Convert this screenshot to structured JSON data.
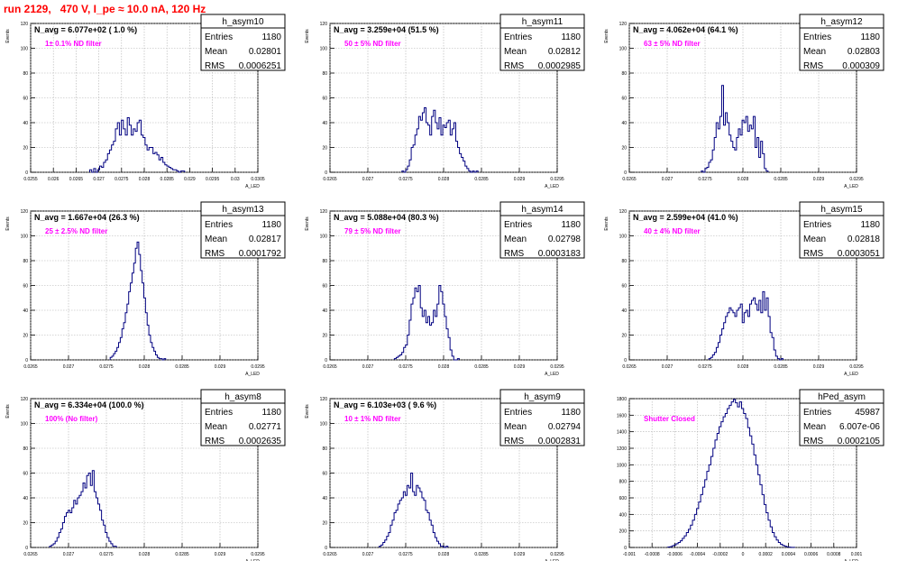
{
  "run_title": "run 2129,   470 V, I_pe ≈ 10.0 nA, 120 Hz",
  "colors": {
    "hist": "#000080",
    "title": "#ff0000",
    "filter": "#ff00ff",
    "grid": "#b0b0b0"
  },
  "chart_data": [
    {
      "type": "histogram",
      "name": "h_asym10",
      "ylabel": "Events",
      "xlabel": "A_LED",
      "xlim": [
        0.0255,
        0.0305
      ],
      "ylim": [
        0,
        120
      ],
      "xticks": [
        "0.0255",
        "0.026",
        "0.0265",
        "0.027",
        "0.0275",
        "0.028",
        "0.0285",
        "0.029",
        "0.0295",
        "0.03",
        "0.0305"
      ],
      "yticks": [
        "0",
        "20",
        "40",
        "60",
        "80",
        "100",
        "120"
      ],
      "navg": "N_avg = 6.077e+02 ( 1.0 %)",
      "filter": "1± 0.1% ND filter",
      "stats": [
        [
          "Entries",
          "1180"
        ],
        [
          "Mean",
          "0.02801"
        ],
        [
          "RMS",
          "0.0006251"
        ]
      ],
      "bins": {
        "start": 0.0268,
        "width": 4.35e-05,
        "values": [
          2,
          0,
          3,
          0,
          2,
          5,
          4,
          8,
          10,
          15,
          18,
          22,
          25,
          35,
          40,
          30,
          42,
          35,
          30,
          44,
          38,
          30,
          35,
          33,
          40,
          42,
          30,
          28,
          22,
          18,
          20,
          20,
          15,
          16,
          14,
          10,
          12,
          8,
          6,
          5,
          4,
          3,
          2,
          2,
          1,
          0,
          1,
          1
        ]
      }
    },
    {
      "type": "histogram",
      "name": "h_asym11",
      "ylabel": "Events",
      "xlabel": "A_LED",
      "xlim": [
        0.0265,
        0.0295
      ],
      "ylim": [
        0,
        120
      ],
      "xticks": [
        "0.0265",
        "0.027",
        "0.0275",
        "0.028",
        "0.0285",
        "0.029",
        "0.0295"
      ],
      "yticks": [
        "0",
        "20",
        "40",
        "60",
        "80",
        "100",
        "120"
      ],
      "navg": "N_avg = 3.259e+04 (51.5 %)",
      "filter": "50 ± 5% ND filter",
      "stats": [
        [
          "Entries",
          "1180"
        ],
        [
          "Mean",
          "0.02812"
        ],
        [
          "RMS",
          "0.0002985"
        ]
      ],
      "bins": {
        "start": 0.02745,
        "width": 2.45e-05,
        "values": [
          1,
          0,
          2,
          5,
          10,
          20,
          22,
          30,
          35,
          45,
          42,
          48,
          52,
          40,
          38,
          30,
          45,
          50,
          40,
          35,
          44,
          30,
          38,
          36,
          40,
          42,
          30,
          35,
          40,
          25,
          20,
          15,
          12,
          9,
          5,
          3,
          1,
          0,
          1,
          0,
          1
        ]
      }
    },
    {
      "type": "histogram",
      "name": "h_asym12",
      "ylabel": "Events",
      "xlabel": "A_LED",
      "xlim": [
        0.0265,
        0.0295
      ],
      "ylim": [
        0,
        120
      ],
      "xticks": [
        "0.0265",
        "0.027",
        "0.0275",
        "0.028",
        "0.0285",
        "0.029",
        "0.0295"
      ],
      "yticks": [
        "0",
        "20",
        "40",
        "60",
        "80",
        "100",
        "120"
      ],
      "navg": "N_avg = 4.062e+04 (64.1 %)",
      "filter": "63 ± 5% ND filter",
      "stats": [
        [
          "Entries",
          "1180"
        ],
        [
          "Mean",
          "0.02803"
        ],
        [
          "RMS",
          "0.000309"
        ]
      ],
      "bins": {
        "start": 0.02745,
        "width": 2.45e-05,
        "values": [
          1,
          0,
          3,
          4,
          8,
          10,
          18,
          28,
          40,
          35,
          45,
          70,
          38,
          48,
          40,
          30,
          25,
          20,
          18,
          28,
          35,
          30,
          42,
          40,
          45,
          33,
          38,
          35,
          45,
          20,
          28,
          12,
          25,
          15,
          3,
          1
        ]
      }
    },
    {
      "type": "histogram",
      "name": "h_asym13",
      "ylabel": "Events",
      "xlabel": "A_LED",
      "xlim": [
        0.0265,
        0.0295
      ],
      "ylim": [
        0,
        120
      ],
      "xticks": [
        "0.0265",
        "0.027",
        "0.0275",
        "0.028",
        "0.0285",
        "0.029",
        "0.0295"
      ],
      "yticks": [
        "0",
        "20",
        "40",
        "60",
        "80",
        "100",
        "120"
      ],
      "navg": "N_avg = 1.667e+04 (26.3 %)",
      "filter": "25 ± 2.5% ND filter",
      "stats": [
        [
          "Entries",
          "1180"
        ],
        [
          "Mean",
          "0.02817"
        ],
        [
          "RMS",
          "0.0001792"
        ]
      ],
      "bins": {
        "start": 0.02755,
        "width": 2.22e-05,
        "values": [
          2,
          3,
          5,
          7,
          10,
          14,
          18,
          25,
          30,
          38,
          45,
          55,
          62,
          70,
          78,
          90,
          95,
          85,
          72,
          62,
          50,
          38,
          28,
          20,
          14,
          10,
          7,
          4,
          2,
          1,
          1,
          0,
          1
        ]
      }
    },
    {
      "type": "histogram",
      "name": "h_asym14",
      "ylabel": "Events",
      "xlabel": "A_LED",
      "xlim": [
        0.0265,
        0.0295
      ],
      "ylim": [
        0,
        120
      ],
      "xticks": [
        "0.0265",
        "0.027",
        "0.0275",
        "0.028",
        "0.0285",
        "0.029",
        "0.0295"
      ],
      "yticks": [
        "0",
        "20",
        "40",
        "60",
        "80",
        "100",
        "120"
      ],
      "navg": "N_avg = 5.088e+04 (80.3 %)",
      "filter": "79 ± 5% ND filter",
      "stats": [
        [
          "Entries",
          "1180"
        ],
        [
          "Mean",
          "0.02798"
        ],
        [
          "RMS",
          "0.0003183"
        ]
      ],
      "bins": {
        "start": 0.02735,
        "width": 2.45e-05,
        "values": [
          1,
          2,
          3,
          4,
          6,
          10,
          12,
          20,
          32,
          45,
          50,
          58,
          55,
          60,
          42,
          35,
          40,
          30,
          35,
          28,
          30,
          40,
          35,
          45,
          60,
          55,
          45,
          35,
          25,
          18,
          8,
          3,
          0,
          0,
          1
        ]
      }
    },
    {
      "type": "histogram",
      "name": "h_asym15",
      "ylabel": "Events",
      "xlabel": "A_LED",
      "xlim": [
        0.0265,
        0.0295
      ],
      "ylim": [
        0,
        120
      ],
      "xticks": [
        "0.0265",
        "0.027",
        "0.0275",
        "0.028",
        "0.0285",
        "0.029",
        "0.0295"
      ],
      "yticks": [
        "0",
        "20",
        "40",
        "60",
        "80",
        "100",
        "120"
      ],
      "navg": "N_avg = 2.599e+04 (41.0 %)",
      "filter": "40 ± 4% ND filter",
      "stats": [
        [
          "Entries",
          "1180"
        ],
        [
          "Mean",
          "0.02818"
        ],
        [
          "RMS",
          "0.0003051"
        ]
      ],
      "bins": {
        "start": 0.02755,
        "width": 2.45e-05,
        "values": [
          1,
          2,
          4,
          6,
          10,
          14,
          20,
          25,
          30,
          35,
          38,
          42,
          40,
          38,
          35,
          40,
          42,
          45,
          30,
          38,
          40,
          35,
          45,
          48,
          50,
          45,
          40,
          48,
          38,
          55,
          40,
          50,
          35,
          22,
          18,
          8,
          3,
          1,
          0,
          1
        ]
      }
    },
    {
      "type": "histogram",
      "name": "h_asym8",
      "ylabel": "Events",
      "xlabel": "A_LED",
      "xlim": [
        0.0265,
        0.0295
      ],
      "ylim": [
        0,
        120
      ],
      "xticks": [
        "0.0265",
        "0.027",
        "0.0275",
        "0.028",
        "0.0285",
        "0.029",
        "0.0295"
      ],
      "yticks": [
        "0",
        "20",
        "40",
        "60",
        "80",
        "100",
        "120"
      ],
      "navg": "N_avg = 6.334e+04 (100.0 %)",
      "filter": "100% (No filter)",
      "stats": [
        [
          "Entries",
          "1180"
        ],
        [
          "Mean",
          "0.02771"
        ],
        [
          "RMS",
          "0.0002635"
        ]
      ],
      "bins": {
        "start": 0.02675,
        "width": 2.45e-05,
        "values": [
          1,
          2,
          3,
          5,
          8,
          12,
          15,
          20,
          25,
          28,
          30,
          28,
          32,
          38,
          35,
          40,
          42,
          45,
          52,
          48,
          58,
          60,
          50,
          62,
          45,
          40,
          35,
          30,
          22,
          18,
          12,
          8,
          5,
          3,
          1,
          1
        ]
      }
    },
    {
      "type": "histogram",
      "name": "h_asym9",
      "ylabel": "Events",
      "xlabel": "A_LED",
      "xlim": [
        0.0265,
        0.0295
      ],
      "ylim": [
        0,
        120
      ],
      "xticks": [
        "0.0265",
        "0.027",
        "0.0275",
        "0.028",
        "0.0285",
        "0.029",
        "0.0295"
      ],
      "yticks": [
        "0",
        "20",
        "40",
        "60",
        "80",
        "100",
        "120"
      ],
      "navg": "N_avg = 6.103e+03 ( 9.6 %)",
      "filter": "10 ± 1% ND filter",
      "stats": [
        [
          "Entries",
          "1180"
        ],
        [
          "Mean",
          "0.02794"
        ],
        [
          "RMS",
          "0.0002831"
        ]
      ],
      "bins": {
        "start": 0.02715,
        "width": 2.45e-05,
        "values": [
          1,
          2,
          4,
          6,
          9,
          12,
          18,
          22,
          28,
          30,
          35,
          38,
          40,
          45,
          42,
          50,
          48,
          60,
          45,
          42,
          50,
          48,
          45,
          40,
          38,
          30,
          28,
          22,
          18,
          12,
          8,
          5,
          3,
          1,
          1,
          0,
          1
        ]
      }
    },
    {
      "type": "histogram",
      "name": "hPed_asym",
      "ylabel": "",
      "xlabel": "A_LED",
      "xlim": [
        -0.001,
        0.001
      ],
      "ylim": [
        0,
        1800
      ],
      "xticks": [
        "-0.001",
        "-0.0008",
        "-0.0006",
        "-0.0004",
        "-0.0002",
        "0",
        "0.0002",
        "0.0004",
        "0.0006",
        "0.0008",
        "0.001"
      ],
      "yticks": [
        "0",
        "200",
        "400",
        "600",
        "800",
        "1000",
        "1200",
        "1400",
        "1600",
        "1800"
      ],
      "navg": "",
      "filter": "Shutter Closed",
      "stats": [
        [
          "Entries",
          "45987"
        ],
        [
          "Mean",
          "6.007e-06"
        ],
        [
          "RMS",
          "0.0002105"
        ]
      ],
      "bins": {
        "start": -0.00066,
        "width": 1.8e-05,
        "values": [
          5,
          10,
          20,
          30,
          45,
          60,
          80,
          110,
          140,
          180,
          220,
          270,
          330,
          400,
          470,
          550,
          640,
          730,
          820,
          920,
          1000,
          1100,
          1200,
          1300,
          1380,
          1460,
          1520,
          1580,
          1620,
          1680,
          1720,
          1760,
          1790,
          1750,
          1700,
          1760,
          1680,
          1620,
          1560,
          1450,
          1350,
          1250,
          1120,
          1000,
          880,
          760,
          640,
          520,
          420,
          330,
          250,
          180,
          130,
          90,
          60,
          40,
          25,
          15,
          8,
          4,
          2,
          1
        ]
      }
    }
  ]
}
